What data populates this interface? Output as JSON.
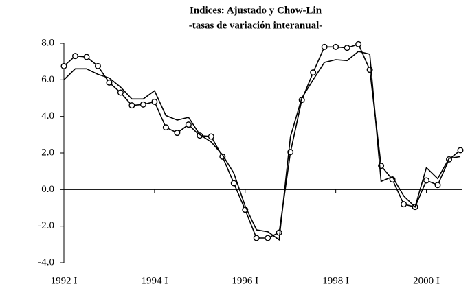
{
  "chart_data": {
    "type": "line",
    "title": "Indices: Ajustado y Chow-Lin",
    "subtitle": "-tasas de variación interanual-",
    "categories": [
      "1992 I",
      null,
      null,
      null,
      null,
      null,
      null,
      null,
      "1994 I",
      null,
      null,
      null,
      null,
      null,
      null,
      null,
      "1996 I",
      null,
      null,
      null,
      null,
      null,
      null,
      null,
      "1998 I",
      null,
      null,
      null,
      null,
      null,
      null,
      null,
      "2000 I",
      null,
      null,
      null
    ],
    "series": [
      {
        "color": "#000000",
        "marker": "circle",
        "values": [
          6.75,
          7.3,
          7.25,
          6.75,
          5.85,
          5.3,
          4.6,
          4.65,
          4.8,
          3.4,
          3.1,
          3.55,
          2.95,
          2.9,
          1.8,
          0.35,
          -1.1,
          -2.65,
          -2.65,
          -2.35,
          2.05,
          4.9,
          6.4,
          7.8,
          7.8,
          7.75,
          7.95,
          6.55,
          1.3,
          0.55,
          -0.8,
          -0.95,
          0.5,
          0.25,
          1.65,
          2.15
        ]
      },
      {
        "color": "#000000",
        "marker": "none",
        "values": [
          6.0,
          6.6,
          6.6,
          6.3,
          6.1,
          5.6,
          4.95,
          4.95,
          5.4,
          4.05,
          3.8,
          3.95,
          3.0,
          2.6,
          1.9,
          0.9,
          -0.9,
          -2.2,
          -2.3,
          -2.75,
          2.9,
          5.0,
          6.0,
          6.95,
          7.1,
          7.05,
          7.55,
          7.4,
          0.45,
          0.7,
          -0.35,
          -0.95,
          1.2,
          0.6,
          1.7,
          1.8
        ]
      }
    ],
    "ylim": [
      -4,
      8
    ],
    "yticks": [
      {
        "value": -4,
        "label": "-4.0"
      },
      {
        "value": -2,
        "label": "-2.0"
      },
      {
        "value": 0,
        "label": "0.0"
      },
      {
        "value": 2,
        "label": "2.0"
      },
      {
        "value": 4,
        "label": "4.0"
      },
      {
        "value": 6,
        "label": "6.0"
      },
      {
        "value": 8,
        "label": "8.0"
      }
    ],
    "grid": false
  }
}
